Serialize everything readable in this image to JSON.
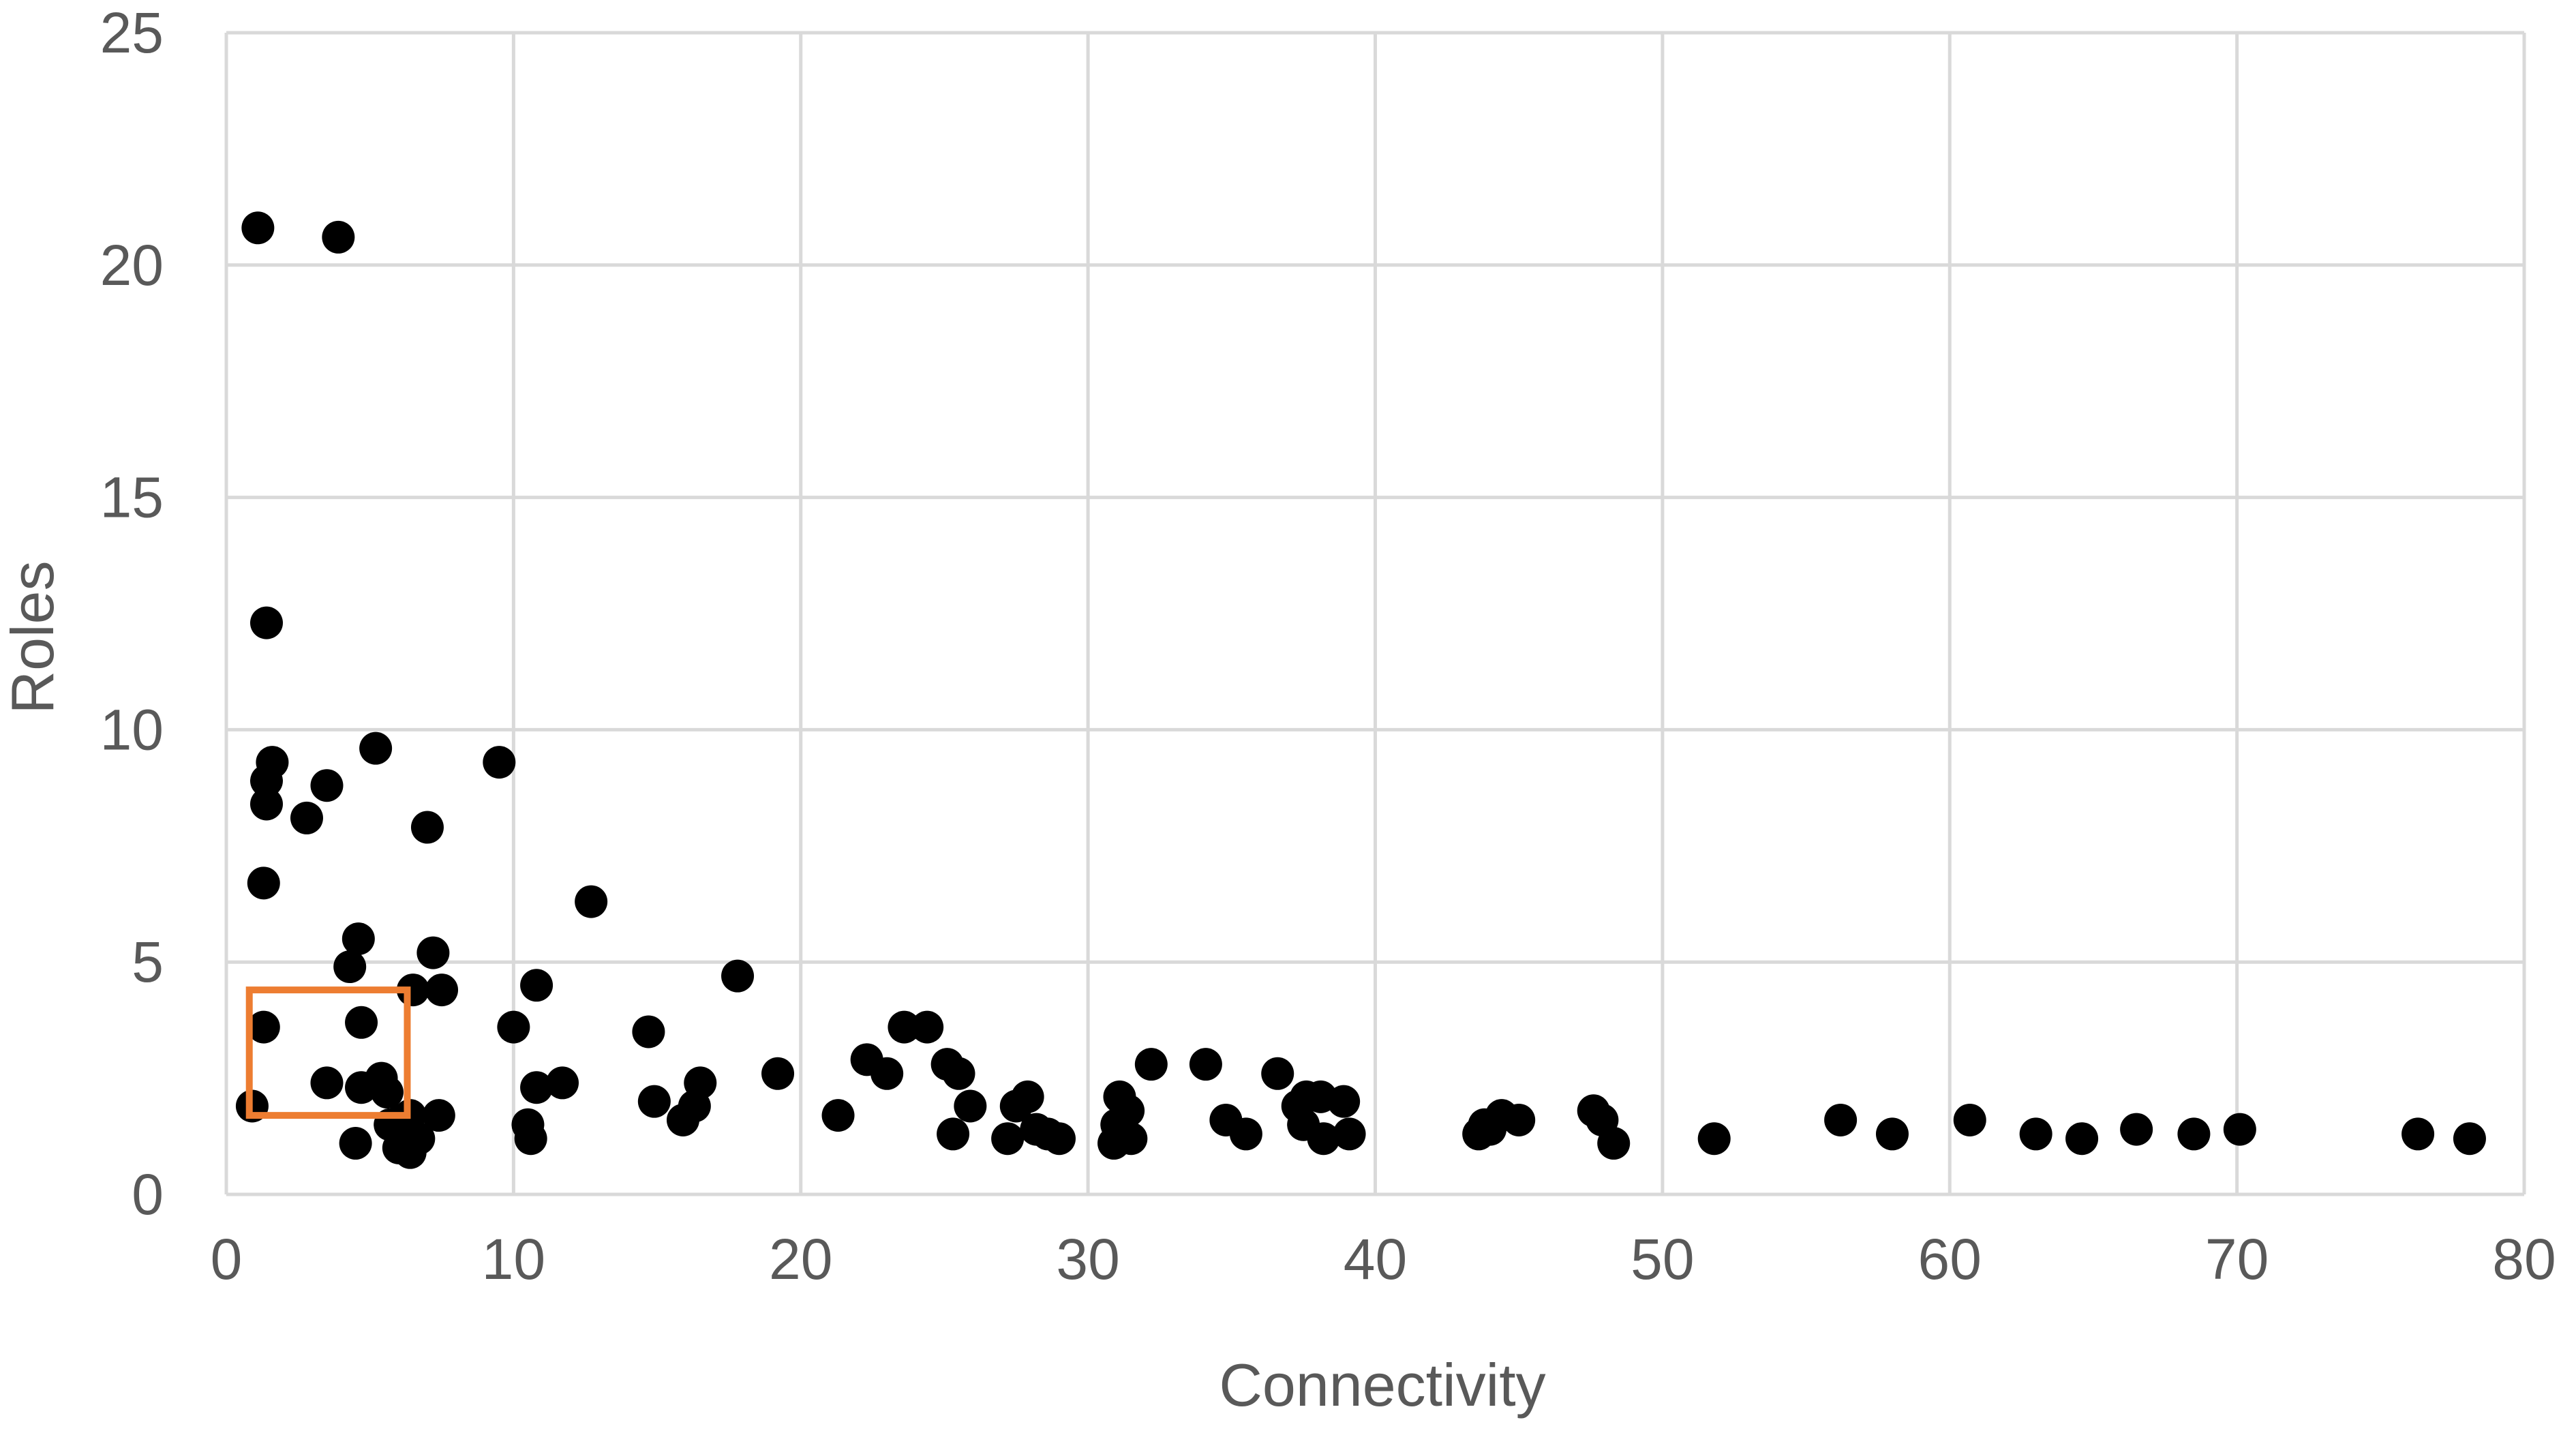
{
  "chart_data": {
    "type": "scatter",
    "title": "",
    "xlabel": "Connectivity",
    "ylabel": "Roles",
    "xlim": [
      0,
      80
    ],
    "ylim": [
      0,
      25
    ],
    "x_ticks": [
      0,
      10,
      20,
      30,
      40,
      50,
      60,
      70,
      80
    ],
    "y_ticks": [
      0,
      5,
      10,
      15,
      20,
      25
    ],
    "grid": true,
    "legend": "none",
    "colors": {
      "points": "#000000",
      "grid": "#d9d9d9",
      "highlight": "#ed7d31",
      "text": "#595959"
    },
    "highlight_box": {
      "x": [
        0.8,
        6.3
      ],
      "y": [
        1.7,
        4.4
      ]
    },
    "points": [
      [
        1.1,
        20.8
      ],
      [
        3.9,
        20.6
      ],
      [
        1.4,
        12.3
      ],
      [
        1.6,
        9.3
      ],
      [
        1.4,
        8.9
      ],
      [
        1.4,
        8.4
      ],
      [
        3.5,
        8.8
      ],
      [
        2.8,
        8.1
      ],
      [
        5.2,
        9.6
      ],
      [
        9.5,
        9.3
      ],
      [
        7.0,
        7.9
      ],
      [
        1.3,
        6.7
      ],
      [
        12.7,
        6.3
      ],
      [
        4.6,
        5.5
      ],
      [
        4.3,
        4.9
      ],
      [
        7.2,
        5.2
      ],
      [
        6.5,
        4.4
      ],
      [
        7.5,
        4.4
      ],
      [
        10.8,
        4.5
      ],
      [
        17.8,
        4.7
      ],
      [
        1.3,
        3.6
      ],
      [
        4.7,
        3.7
      ],
      [
        10.0,
        3.6
      ],
      [
        14.7,
        3.5
      ],
      [
        23.6,
        3.6
      ],
      [
        24.4,
        3.6
      ],
      [
        3.5,
        2.4
      ],
      [
        4.7,
        2.3
      ],
      [
        5.4,
        2.5
      ],
      [
        5.6,
        2.2
      ],
      [
        10.8,
        2.3
      ],
      [
        11.7,
        2.4
      ],
      [
        16.5,
        2.4
      ],
      [
        19.2,
        2.6
      ],
      [
        22.3,
        2.9
      ],
      [
        23.0,
        2.6
      ],
      [
        25.1,
        2.8
      ],
      [
        25.5,
        2.6
      ],
      [
        32.2,
        2.8
      ],
      [
        34.1,
        2.8
      ],
      [
        36.6,
        2.6
      ],
      [
        0.9,
        1.9
      ],
      [
        6.1,
        1.6
      ],
      [
        6.4,
        1.7
      ],
      [
        5.7,
        1.5
      ],
      [
        7.4,
        1.7
      ],
      [
        10.5,
        1.5
      ],
      [
        14.9,
        2.0
      ],
      [
        16.3,
        1.9
      ],
      [
        15.9,
        1.6
      ],
      [
        21.3,
        1.7
      ],
      [
        25.9,
        1.9
      ],
      [
        27.5,
        1.9
      ],
      [
        27.9,
        2.1
      ],
      [
        28.2,
        1.4
      ],
      [
        28.6,
        1.3
      ],
      [
        31.1,
        2.1
      ],
      [
        31.4,
        1.8
      ],
      [
        31.0,
        1.5
      ],
      [
        34.8,
        1.6
      ],
      [
        37.3,
        1.9
      ],
      [
        37.6,
        2.1
      ],
      [
        37.5,
        1.5
      ],
      [
        38.1,
        2.1
      ],
      [
        38.9,
        2.0
      ],
      [
        44.4,
        1.7
      ],
      [
        43.8,
        1.5
      ],
      [
        45.0,
        1.6
      ],
      [
        47.6,
        1.8
      ],
      [
        47.9,
        1.6
      ],
      [
        56.2,
        1.6
      ],
      [
        60.7,
        1.6
      ],
      [
        4.5,
        1.1
      ],
      [
        6.0,
        1.0
      ],
      [
        6.4,
        0.9
      ],
      [
        6.7,
        1.2
      ],
      [
        10.6,
        1.2
      ],
      [
        25.3,
        1.3
      ],
      [
        27.2,
        1.2
      ],
      [
        29.0,
        1.2
      ],
      [
        30.9,
        1.1
      ],
      [
        31.5,
        1.2
      ],
      [
        35.5,
        1.3
      ],
      [
        38.2,
        1.2
      ],
      [
        39.1,
        1.3
      ],
      [
        43.6,
        1.3
      ],
      [
        44.0,
        1.4
      ],
      [
        48.3,
        1.1
      ],
      [
        51.8,
        1.2
      ],
      [
        58.0,
        1.3
      ],
      [
        63.0,
        1.3
      ],
      [
        64.6,
        1.2
      ],
      [
        66.5,
        1.4
      ],
      [
        68.5,
        1.3
      ],
      [
        70.1,
        1.4
      ],
      [
        76.3,
        1.3
      ],
      [
        78.1,
        1.2
      ]
    ]
  }
}
